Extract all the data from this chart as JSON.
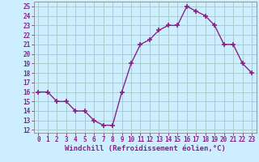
{
  "x": [
    0,
    1,
    2,
    3,
    4,
    5,
    6,
    7,
    8,
    9,
    10,
    11,
    12,
    13,
    14,
    15,
    16,
    17,
    18,
    19,
    20,
    21,
    22,
    23
  ],
  "y": [
    16,
    16,
    15,
    15,
    14,
    14,
    13,
    12.5,
    12.5,
    16,
    19,
    21,
    21.5,
    22.5,
    23,
    23,
    25,
    24.5,
    24,
    23,
    21,
    21,
    19,
    18
  ],
  "line_color": "#882288",
  "marker": "+",
  "marker_size": 4,
  "marker_lw": 1.2,
  "line_width": 1.0,
  "background_color": "#cceeff",
  "grid_color": "#aacccc",
  "yticks": [
    12,
    13,
    14,
    15,
    16,
    17,
    18,
    19,
    20,
    21,
    22,
    23,
    24,
    25
  ],
  "xlabel": "Windchill (Refroidissement éolien,°C)",
  "ylim": [
    11.7,
    25.5
  ],
  "xlim": [
    -0.5,
    23.5
  ],
  "tick_fontsize": 5.5,
  "xlabel_fontsize": 6.5
}
